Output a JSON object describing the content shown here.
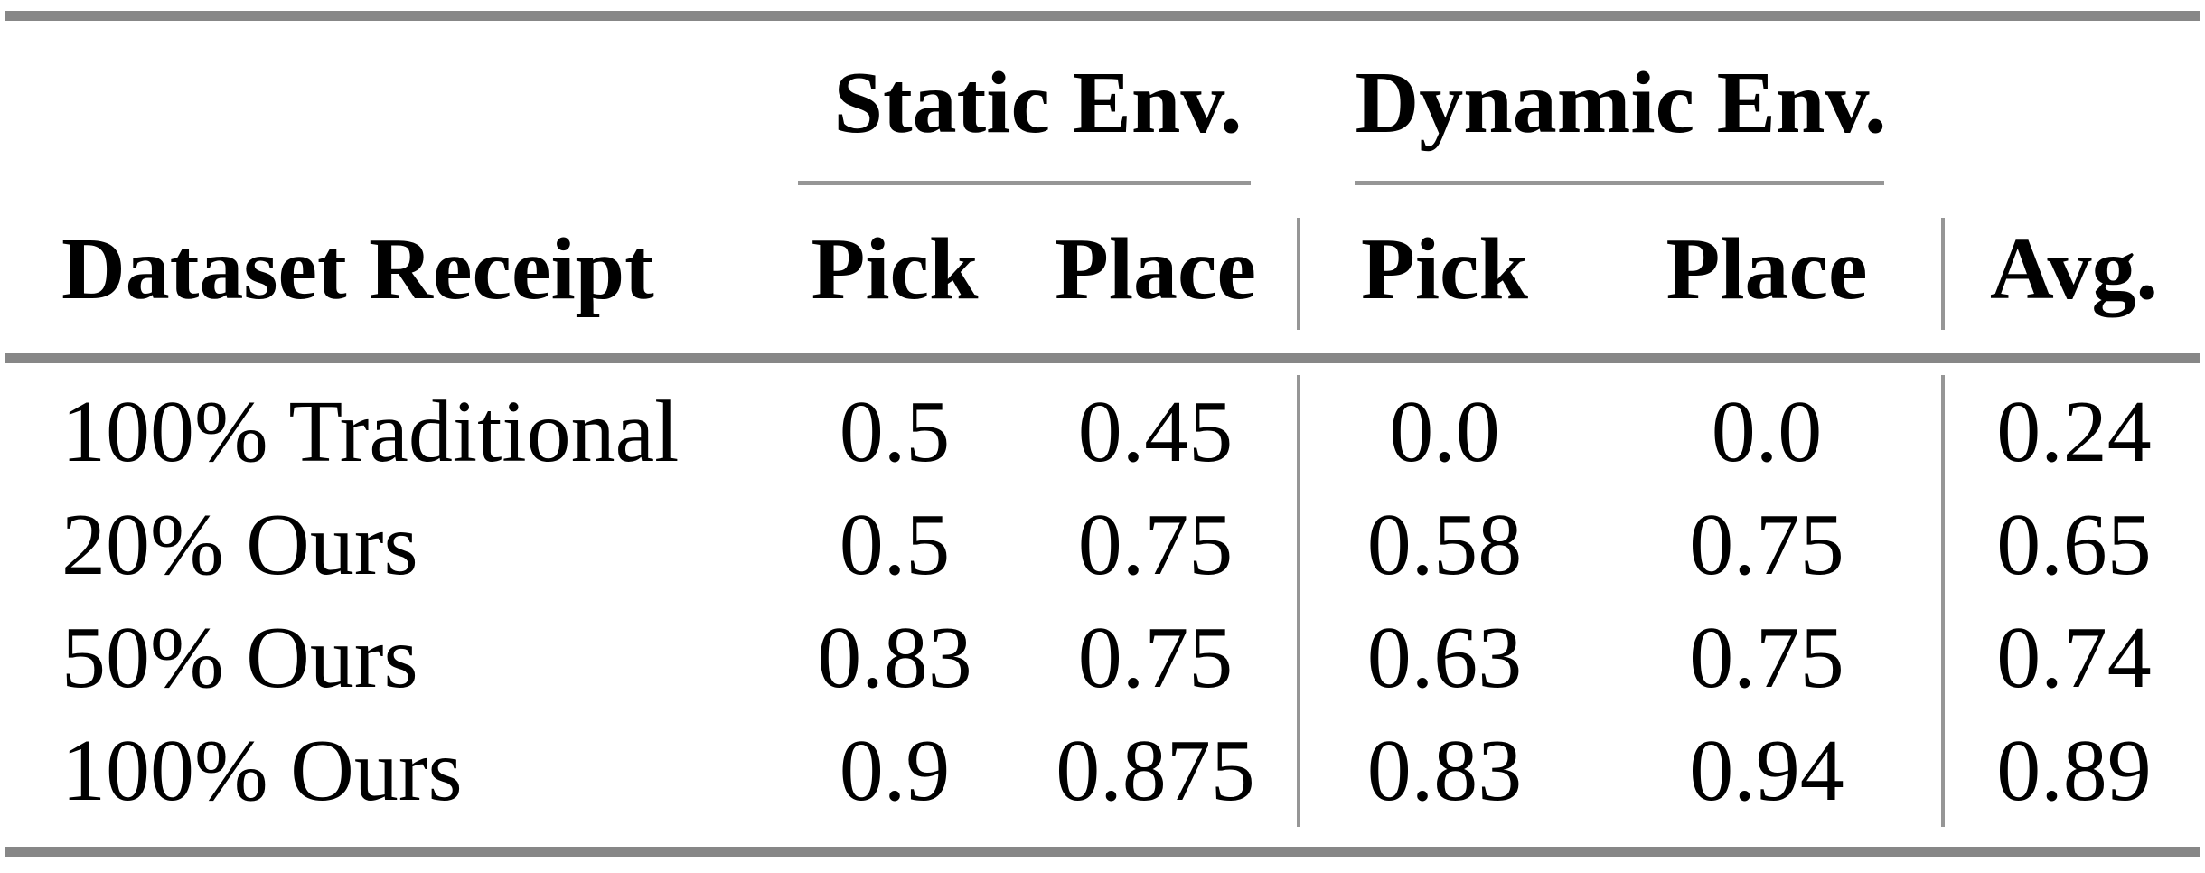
{
  "table": {
    "col_groups": [
      {
        "label": "Static Env."
      },
      {
        "label": "Dynamic Env."
      }
    ],
    "columns": {
      "row_header": "Dataset Receipt",
      "static_pick": "Pick",
      "static_place": "Place",
      "dynamic_pick": "Pick",
      "dynamic_place": "Place",
      "avg": "Avg."
    },
    "rows": [
      {
        "label": "100% Traditional",
        "values": [
          "0.5",
          "0.45",
          "0.0",
          "0.0",
          "0.24"
        ]
      },
      {
        "label": "20% Ours",
        "values": [
          "0.5",
          "0.75",
          "0.58",
          "0.75",
          "0.65"
        ]
      },
      {
        "label": "50% Ours",
        "values": [
          "0.83",
          "0.75",
          "0.63",
          "0.75",
          "0.74"
        ]
      },
      {
        "label": "100% Ours",
        "values": [
          "0.9",
          "0.875",
          "0.83",
          "0.94",
          "0.89"
        ]
      }
    ],
    "colors": {
      "thick_rule": "#878787",
      "thin_rule": "#969696",
      "text": "#000000",
      "background": "#ffffff"
    }
  },
  "chart_data": {
    "type": "table",
    "title": "",
    "column_groups": [
      {
        "label": "Static Env.",
        "columns": [
          "Pick",
          "Place"
        ]
      },
      {
        "label": "Dynamic Env.",
        "columns": [
          "Pick",
          "Place"
        ]
      }
    ],
    "columns": [
      "Dataset Receipt",
      "Static Env. Pick",
      "Static Env. Place",
      "Dynamic Env. Pick",
      "Dynamic Env. Place",
      "Avg."
    ],
    "rows": [
      [
        "100% Traditional",
        0.5,
        0.45,
        0.0,
        0.0,
        0.24
      ],
      [
        "20% Ours",
        0.5,
        0.75,
        0.58,
        0.75,
        0.65
      ],
      [
        "50% Ours",
        0.83,
        0.75,
        0.63,
        0.75,
        0.74
      ],
      [
        "100% Ours",
        0.9,
        0.875,
        0.83,
        0.94,
        0.89
      ]
    ]
  }
}
